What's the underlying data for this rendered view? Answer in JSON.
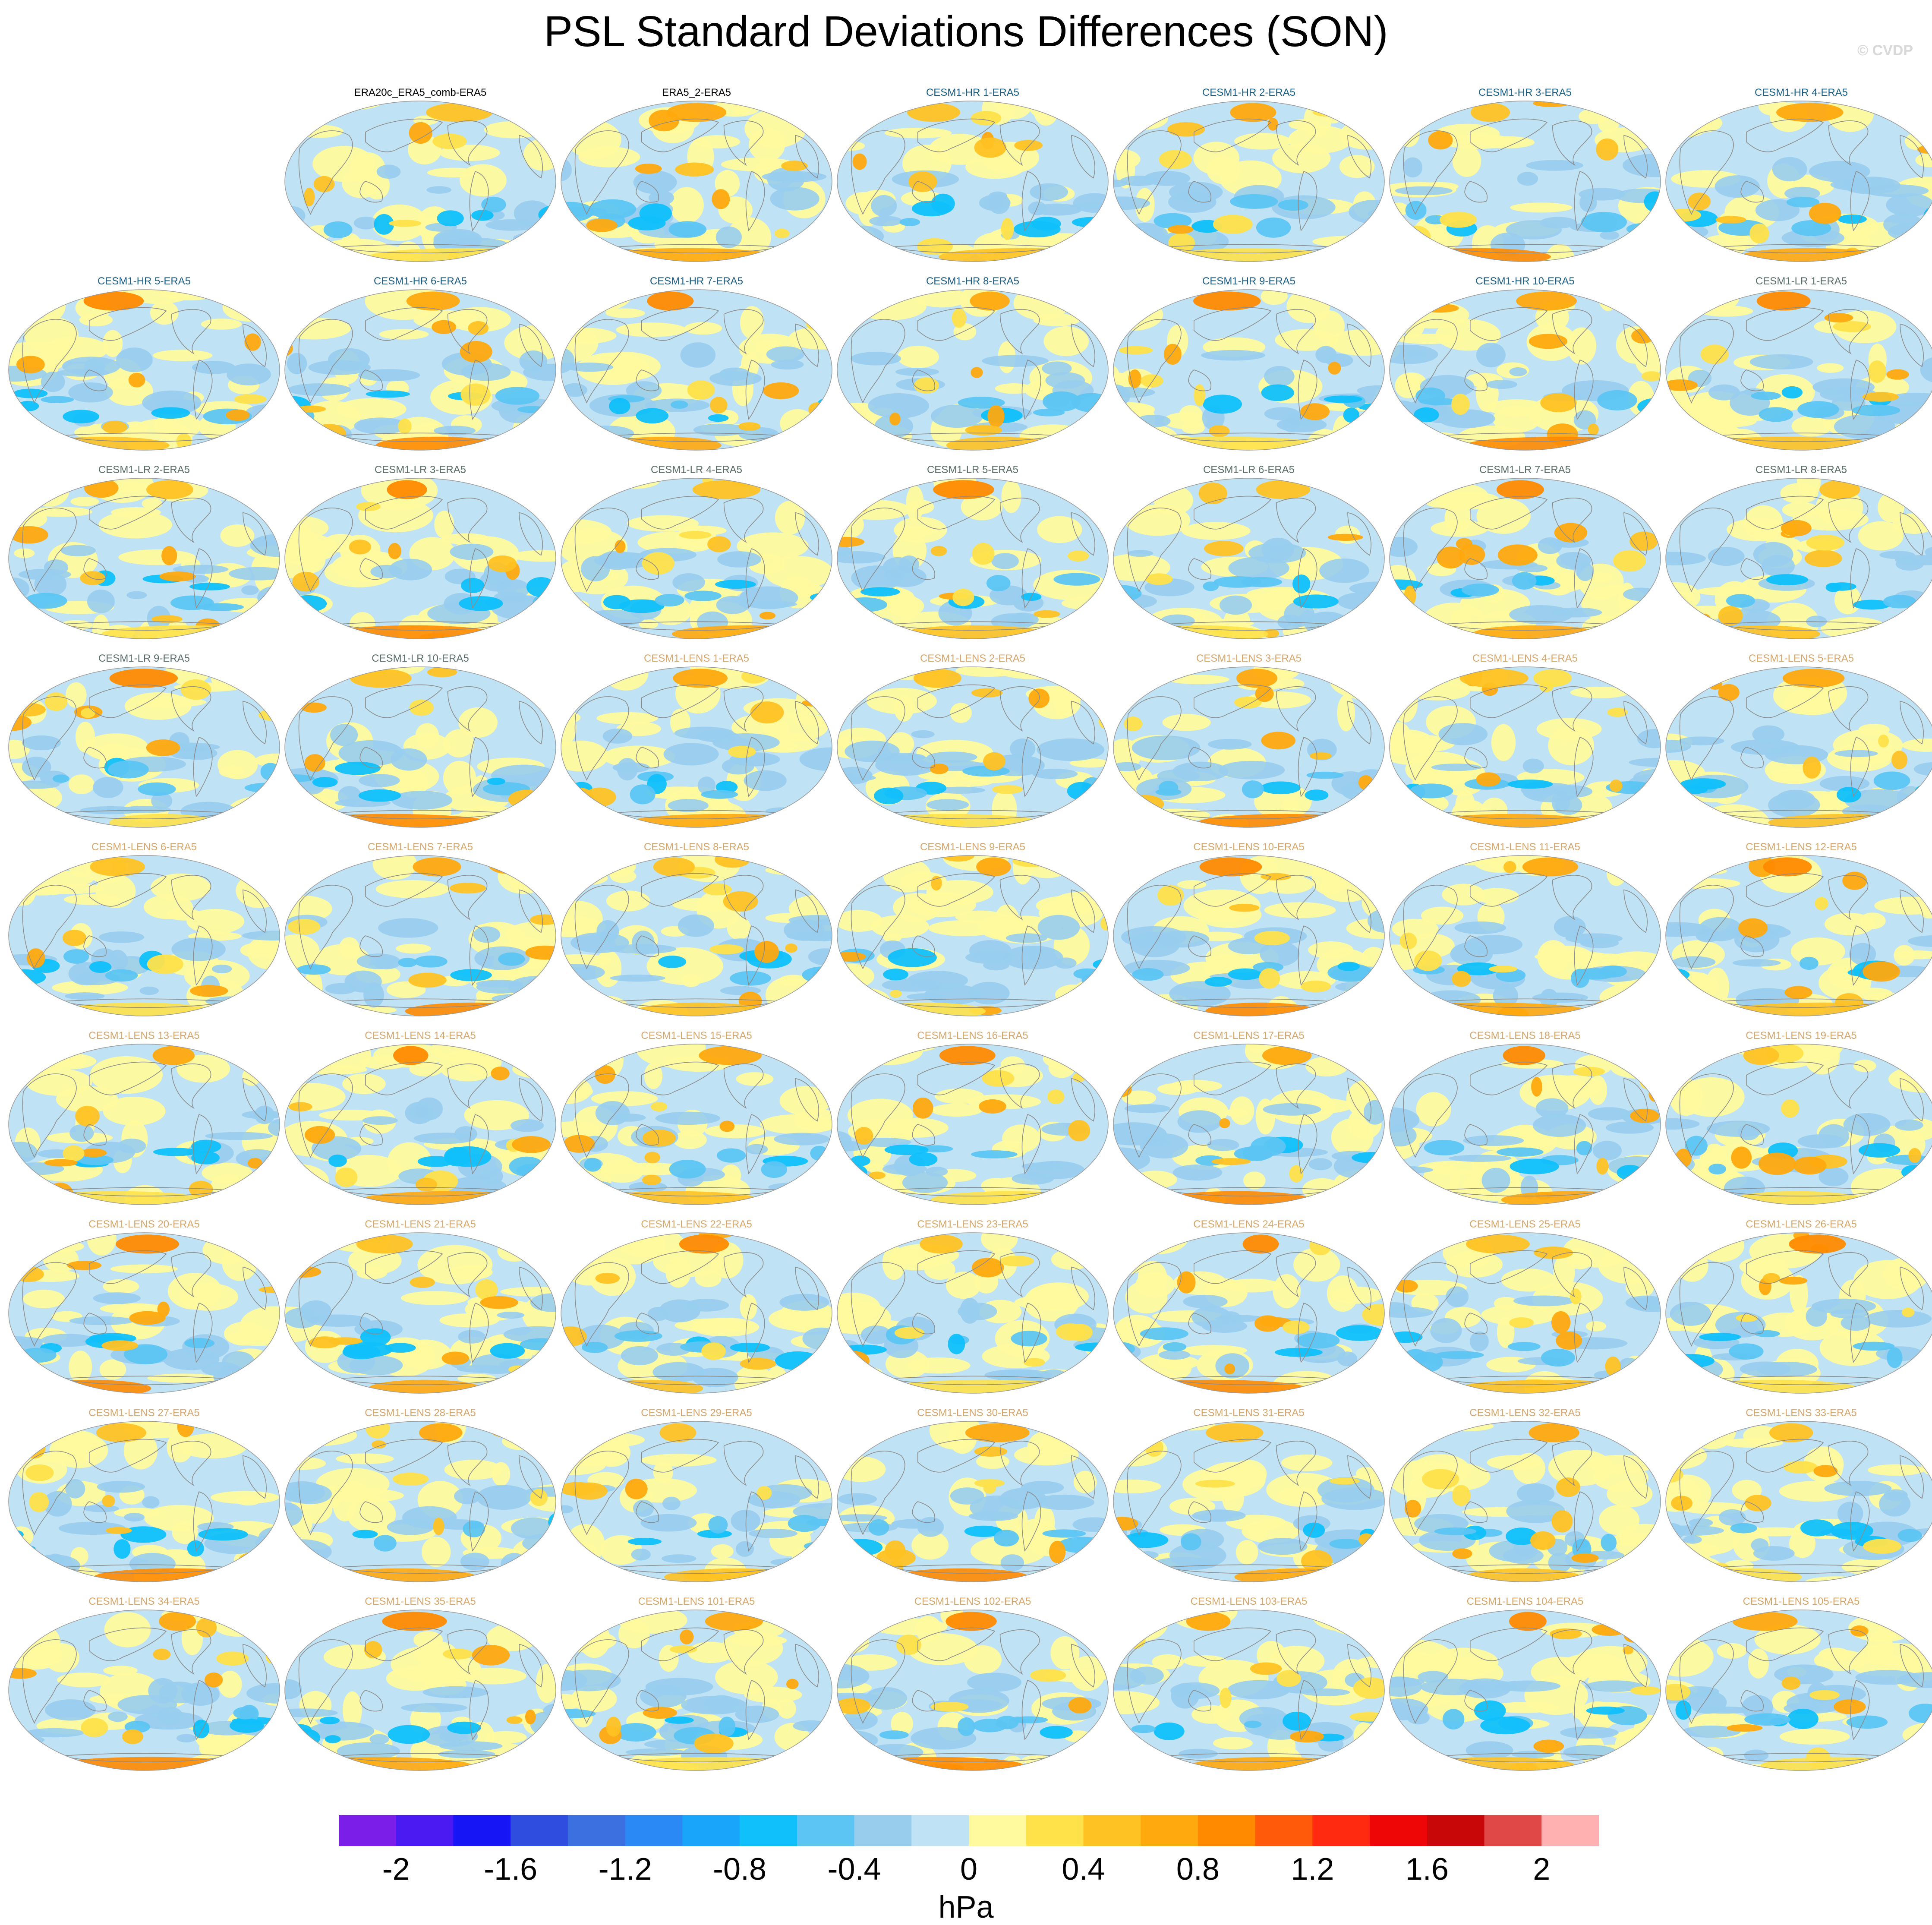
{
  "title": "PSL Standard Deviations Differences (SON)",
  "watermark": "© CVDP",
  "units": "hPa",
  "colorbar": {
    "colors": [
      "#7b1fe8",
      "#4b19f2",
      "#1515f5",
      "#2f4ee0",
      "#3c6fe0",
      "#2b89f5",
      "#18a5fa",
      "#0fc0fb",
      "#5cc5f3",
      "#98cdee",
      "#bfe2f4",
      "#fffa9e",
      "#ffe24a",
      "#ffc223",
      "#ffa90e",
      "#ff8a00",
      "#ff5a0a",
      "#ff2a10",
      "#ee0505",
      "#c80808",
      "#e04848",
      "#ffb0b0"
    ],
    "labels": [
      "-2",
      "-1.6",
      "-1.2",
      "-0.8",
      "-0.4",
      "0",
      "0.4",
      "0.8",
      "1.2",
      "1.6",
      "2"
    ],
    "label_values": [
      -2,
      -1.6,
      -1.2,
      -0.8,
      -0.4,
      0,
      0.4,
      0.8,
      1.2,
      1.6,
      2
    ],
    "min": -2.2,
    "max": 2.2
  },
  "title_colors": {
    "obs": "#000000",
    "hr": "#1b5f87",
    "lr": "#5a6d6a",
    "lens": "#d7a66a"
  },
  "panels": [
    {
      "title": "ERA20c_ERA5_comb-ERA5",
      "group": "obs",
      "row": 0,
      "col": 1
    },
    {
      "title": "ERA5_2-ERA5",
      "group": "obs",
      "row": 0,
      "col": 2
    },
    {
      "title": "CESM1-HR 1-ERA5",
      "group": "hr",
      "row": 0,
      "col": 3
    },
    {
      "title": "CESM1-HR 2-ERA5",
      "group": "hr",
      "row": 0,
      "col": 4
    },
    {
      "title": "CESM1-HR 3-ERA5",
      "group": "hr",
      "row": 0,
      "col": 5
    },
    {
      "title": "CESM1-HR 4-ERA5",
      "group": "hr",
      "row": 0,
      "col": 6
    },
    {
      "title": "CESM1-HR 5-ERA5",
      "group": "hr",
      "row": 1,
      "col": 0
    },
    {
      "title": "CESM1-HR 6-ERA5",
      "group": "hr",
      "row": 1,
      "col": 1
    },
    {
      "title": "CESM1-HR 7-ERA5",
      "group": "hr",
      "row": 1,
      "col": 2
    },
    {
      "title": "CESM1-HR 8-ERA5",
      "group": "hr",
      "row": 1,
      "col": 3
    },
    {
      "title": "CESM1-HR 9-ERA5",
      "group": "hr",
      "row": 1,
      "col": 4
    },
    {
      "title": "CESM1-HR 10-ERA5",
      "group": "hr",
      "row": 1,
      "col": 5
    },
    {
      "title": "CESM1-LR 1-ERA5",
      "group": "lr",
      "row": 1,
      "col": 6
    },
    {
      "title": "CESM1-LR 2-ERA5",
      "group": "lr",
      "row": 2,
      "col": 0
    },
    {
      "title": "CESM1-LR 3-ERA5",
      "group": "lr",
      "row": 2,
      "col": 1
    },
    {
      "title": "CESM1-LR 4-ERA5",
      "group": "lr",
      "row": 2,
      "col": 2
    },
    {
      "title": "CESM1-LR 5-ERA5",
      "group": "lr",
      "row": 2,
      "col": 3
    },
    {
      "title": "CESM1-LR 6-ERA5",
      "group": "lr",
      "row": 2,
      "col": 4
    },
    {
      "title": "CESM1-LR 7-ERA5",
      "group": "lr",
      "row": 2,
      "col": 5
    },
    {
      "title": "CESM1-LR 8-ERA5",
      "group": "lr",
      "row": 2,
      "col": 6
    },
    {
      "title": "CESM1-LR 9-ERA5",
      "group": "lr",
      "row": 3,
      "col": 0
    },
    {
      "title": "CESM1-LR 10-ERA5",
      "group": "lr",
      "row": 3,
      "col": 1
    },
    {
      "title": "CESM1-LENS 1-ERA5",
      "group": "lens",
      "row": 3,
      "col": 2
    },
    {
      "title": "CESM1-LENS 2-ERA5",
      "group": "lens",
      "row": 3,
      "col": 3
    },
    {
      "title": "CESM1-LENS 3-ERA5",
      "group": "lens",
      "row": 3,
      "col": 4
    },
    {
      "title": "CESM1-LENS 4-ERA5",
      "group": "lens",
      "row": 3,
      "col": 5
    },
    {
      "title": "CESM1-LENS 5-ERA5",
      "group": "lens",
      "row": 3,
      "col": 6
    },
    {
      "title": "CESM1-LENS 6-ERA5",
      "group": "lens",
      "row": 4,
      "col": 0
    },
    {
      "title": "CESM1-LENS 7-ERA5",
      "group": "lens",
      "row": 4,
      "col": 1
    },
    {
      "title": "CESM1-LENS 8-ERA5",
      "group": "lens",
      "row": 4,
      "col": 2
    },
    {
      "title": "CESM1-LENS 9-ERA5",
      "group": "lens",
      "row": 4,
      "col": 3
    },
    {
      "title": "CESM1-LENS 10-ERA5",
      "group": "lens",
      "row": 4,
      "col": 4
    },
    {
      "title": "CESM1-LENS 11-ERA5",
      "group": "lens",
      "row": 4,
      "col": 5
    },
    {
      "title": "CESM1-LENS 12-ERA5",
      "group": "lens",
      "row": 4,
      "col": 6
    },
    {
      "title": "CESM1-LENS 13-ERA5",
      "group": "lens",
      "row": 5,
      "col": 0
    },
    {
      "title": "CESM1-LENS 14-ERA5",
      "group": "lens",
      "row": 5,
      "col": 1
    },
    {
      "title": "CESM1-LENS 15-ERA5",
      "group": "lens",
      "row": 5,
      "col": 2
    },
    {
      "title": "CESM1-LENS 16-ERA5",
      "group": "lens",
      "row": 5,
      "col": 3
    },
    {
      "title": "CESM1-LENS 17-ERA5",
      "group": "lens",
      "row": 5,
      "col": 4
    },
    {
      "title": "CESM1-LENS 18-ERA5",
      "group": "lens",
      "row": 5,
      "col": 5
    },
    {
      "title": "CESM1-LENS 19-ERA5",
      "group": "lens",
      "row": 5,
      "col": 6
    },
    {
      "title": "CESM1-LENS 20-ERA5",
      "group": "lens",
      "row": 6,
      "col": 0
    },
    {
      "title": "CESM1-LENS 21-ERA5",
      "group": "lens",
      "row": 6,
      "col": 1
    },
    {
      "title": "CESM1-LENS 22-ERA5",
      "group": "lens",
      "row": 6,
      "col": 2
    },
    {
      "title": "CESM1-LENS 23-ERA5",
      "group": "lens",
      "row": 6,
      "col": 3
    },
    {
      "title": "CESM1-LENS 24-ERA5",
      "group": "lens",
      "row": 6,
      "col": 4
    },
    {
      "title": "CESM1-LENS 25-ERA5",
      "group": "lens",
      "row": 6,
      "col": 5
    },
    {
      "title": "CESM1-LENS 26-ERA5",
      "group": "lens",
      "row": 6,
      "col": 6
    },
    {
      "title": "CESM1-LENS 27-ERA5",
      "group": "lens",
      "row": 7,
      "col": 0
    },
    {
      "title": "CESM1-LENS 28-ERA5",
      "group": "lens",
      "row": 7,
      "col": 1
    },
    {
      "title": "CESM1-LENS 29-ERA5",
      "group": "lens",
      "row": 7,
      "col": 2
    },
    {
      "title": "CESM1-LENS 30-ERA5",
      "group": "lens",
      "row": 7,
      "col": 3
    },
    {
      "title": "CESM1-LENS 31-ERA5",
      "group": "lens",
      "row": 7,
      "col": 4
    },
    {
      "title": "CESM1-LENS 32-ERA5",
      "group": "lens",
      "row": 7,
      "col": 5
    },
    {
      "title": "CESM1-LENS 33-ERA5",
      "group": "lens",
      "row": 7,
      "col": 6
    },
    {
      "title": "CESM1-LENS 34-ERA5",
      "group": "lens",
      "row": 8,
      "col": 0
    },
    {
      "title": "CESM1-LENS 35-ERA5",
      "group": "lens",
      "row": 8,
      "col": 1
    },
    {
      "title": "CESM1-LENS 101-ERA5",
      "group": "lens",
      "row": 8,
      "col": 2
    },
    {
      "title": "CESM1-LENS 102-ERA5",
      "group": "lens",
      "row": 8,
      "col": 3
    },
    {
      "title": "CESM1-LENS 103-ERA5",
      "group": "lens",
      "row": 8,
      "col": 4
    },
    {
      "title": "CESM1-LENS 104-ERA5",
      "group": "lens",
      "row": 8,
      "col": 5
    },
    {
      "title": "CESM1-LENS 105-ERA5",
      "group": "lens",
      "row": 8,
      "col": 6
    }
  ]
}
